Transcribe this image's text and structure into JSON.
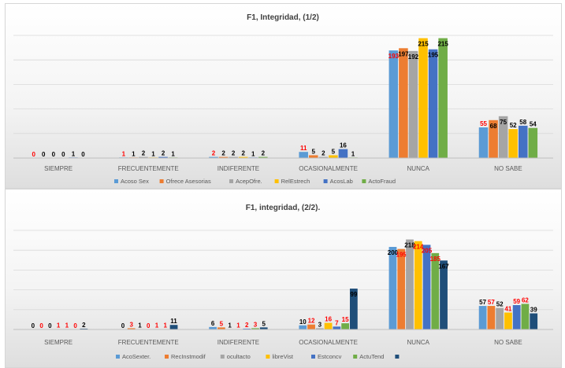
{
  "chart_data": [
    {
      "type": "bar",
      "title": "F1, Integridad, (1/2)",
      "categories": [
        "SIEMPRE",
        "FRECUENTEMENTE",
        "INDIFERENTE",
        "OCASIONALMENTE",
        "NUNCA",
        "NO SABE"
      ],
      "series": [
        {
          "name": "Acoso Sex",
          "color": "#5b9bd5",
          "values": [
            0,
            1,
            2,
            11,
            193,
            55
          ],
          "label_color": "#ff0000"
        },
        {
          "name": "Ofrece Asesorias",
          "color": "#ed7d31",
          "values": [
            0,
            1,
            2,
            5,
            197,
            68
          ],
          "label_color": "#000000"
        },
        {
          "name": "AcepOfre.",
          "color": "#a5a5a5",
          "values": [
            0,
            2,
            2,
            2,
            192,
            75
          ],
          "label_color": "#000000"
        },
        {
          "name": "RelEstrech",
          "color": "#ffc000",
          "values": [
            0,
            1,
            2,
            5,
            215,
            52
          ],
          "label_color": "#000000"
        },
        {
          "name": "AcosLab",
          "color": "#4472c4",
          "values": [
            1,
            2,
            1,
            16,
            195,
            58
          ],
          "label_color": "#000000"
        },
        {
          "name": "ActoFraud",
          "color": "#70ad47",
          "values": [
            0,
            1,
            2,
            1,
            215,
            54
          ],
          "label_color": "#000000"
        }
      ],
      "ylim": [
        0,
        220
      ],
      "grid": true,
      "legend": "bottom"
    },
    {
      "type": "bar",
      "title": "F1, integridad, (2/2).",
      "categories": [
        "SIEMPRE",
        "FRECUENTEMENTE",
        "INDIFERENTE",
        "OCASIONALMENTE",
        "NUNCA",
        "NO SABE"
      ],
      "series": [
        {
          "name": "AcoSexter.",
          "color": "#5b9bd5",
          "values": [
            0,
            0,
            6,
            10,
            200,
            57
          ],
          "label_color": "#000000"
        },
        {
          "name": "RecInstmodif",
          "color": "#ed7d31",
          "values": [
            0,
            3,
            5,
            12,
            195,
            57
          ],
          "label_color": "#ff0000"
        },
        {
          "name": "ocultacto",
          "color": "#a5a5a5",
          "values": [
            0,
            1,
            1,
            3,
            218,
            52
          ],
          "label_color": "#000000"
        },
        {
          "name": "libreVist",
          "color": "#ffc000",
          "values": [
            1,
            0,
            1,
            16,
            214,
            41
          ],
          "label_color": "#ff0000"
        },
        {
          "name": "Estconcv",
          "color": "#4472c4",
          "values": [
            1,
            1,
            2,
            7,
            205,
            59
          ],
          "label_color": "#ff0000"
        },
        {
          "name": "ActuTend",
          "color": "#70ad47",
          "values": [
            0,
            1,
            3,
            15,
            185,
            62
          ],
          "label_color": "#ff0000"
        },
        {
          "name": "",
          "color": "#1f4e79",
          "values": [
            2,
            11,
            5,
            99,
            167,
            39
          ],
          "label_color": "#000000"
        }
      ],
      "ylim": [
        0,
        240
      ],
      "grid": true,
      "legend": "bottom"
    }
  ]
}
